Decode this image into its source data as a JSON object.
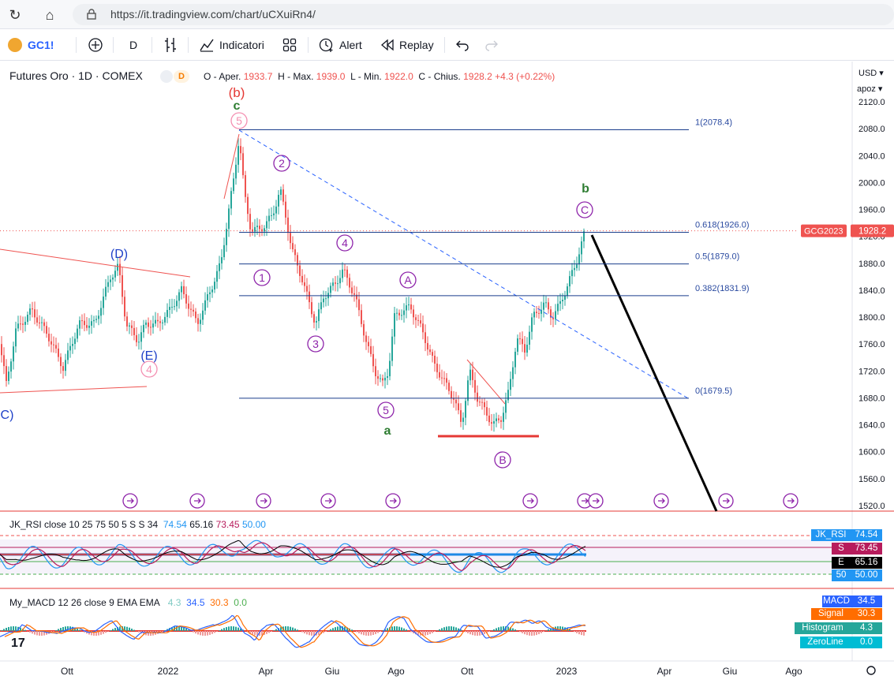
{
  "browser": {
    "url": "https://it.tradingview.com/chart/uCXuiRn4/"
  },
  "toolbar": {
    "symbol": "GC1!",
    "interval": "D",
    "indicators_label": "Indicatori",
    "alert_label": "Alert",
    "replay_label": "Replay"
  },
  "legend": {
    "title": "Futures Oro · 1D · COMEX",
    "badge": "D",
    "ohlc_o_label": "O - Aper.",
    "ohlc_o": "1933.7",
    "ohlc_h_label": "H - Max.",
    "ohlc_h": "1939.0",
    "ohlc_l_label": "L - Min.",
    "ohlc_l": "1922.0",
    "ohlc_c_label": "C - Chius.",
    "ohlc_c": "1928.2",
    "ohlc_change": "+4.3 (+0.22%)"
  },
  "price_axis": {
    "currency": "USD",
    "mode": "apoz",
    "ticks": [
      "2120.0",
      "2080.0",
      "2040.0",
      "2000.0",
      "1960.0",
      "1920.0",
      "1880.0",
      "1840.0",
      "1800.0",
      "1760.0",
      "1720.0",
      "1680.0",
      "1640.0",
      "1600.0",
      "1560.0",
      "1520.0"
    ],
    "last_symbol": "GCG2023",
    "last_price": "1928.2",
    "colors": {
      "down": "#ef5350",
      "up": "#26a69a"
    }
  },
  "time_axis": {
    "ticks": [
      "Ott",
      "2022",
      "Apr",
      "Giu",
      "Ago",
      "Ott",
      "2023",
      "Apr",
      "Giu",
      "Ago"
    ]
  },
  "fib_levels": [
    {
      "label": "1(2078.4)",
      "price": 2078.4
    },
    {
      "label": "0.618(1926.0)",
      "price": 1926.0
    },
    {
      "label": "0.5(1879.0)",
      "price": 1879.0
    },
    {
      "label": "0.382(1831.9)",
      "price": 1831.9
    },
    {
      "label": "0(1679.5)",
      "price": 1679.5
    }
  ],
  "wave_labels": {
    "b_paren": "(b)",
    "c_green": "c",
    "five_top": "5",
    "two": "2",
    "four": "4",
    "one": "1",
    "three": "3",
    "five_low": "5",
    "a_green": "a",
    "A": "A",
    "B": "B",
    "C": "C",
    "b_green": "b",
    "D": "(D)",
    "E": "(E)",
    "four_pink": "4",
    "C_left": "C)"
  },
  "rsi": {
    "title": "JK_RSI",
    "params": "close 10 25 75 50 5 S S 34",
    "v1": "74.54",
    "v2": "65.16",
    "v3": "73.45",
    "v4": "50.00",
    "labels": [
      {
        "name": "JK_RSI",
        "value": "74.54",
        "color": "#2196f3"
      },
      {
        "name": "S",
        "value": "73.45",
        "color": "#b71c5c"
      },
      {
        "name": "E",
        "value": "65.16",
        "color": "#000000"
      },
      {
        "name": "50",
        "value": "50.00",
        "color": "#2196f3"
      }
    ]
  },
  "macd": {
    "title": "My_MACD",
    "params": "12 26 close 9 EMA EMA",
    "v1": "4.3",
    "v2": "34.5",
    "v3": "30.3",
    "v4": "0.0",
    "labels": [
      {
        "name": "MACD",
        "value": "34.5",
        "color": "#2962ff"
      },
      {
        "name": "Signal",
        "value": "30.3",
        "color": "#ff6d00"
      },
      {
        "name": "Histogram",
        "value": "4.3",
        "color": "#26a69a"
      },
      {
        "name": "ZeroLine",
        "value": "0.0",
        "color": "#00bcd4"
      }
    ]
  }
}
